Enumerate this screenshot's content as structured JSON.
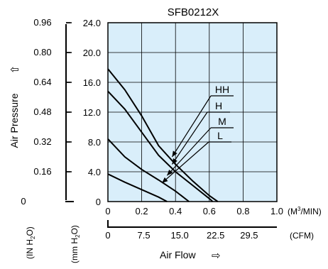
{
  "chart_data": {
    "type": "line",
    "title": "SFB0212X",
    "y_axis_label": "Air Pressure",
    "y_axis_arrow": "⇧",
    "x_axis_label": "Air Flow",
    "x_axis_arrow": "⇨",
    "y_inch_unit": {
      "base": "(IN H",
      "sub": "2",
      "end": "O)"
    },
    "y_mm_unit": {
      "base": "(mm H",
      "sub": "2",
      "end": "O)"
    },
    "x_m3_unit": {
      "base": "(M",
      "sup": "3",
      "end": "/MIN)"
    },
    "x_cfm_unit": "(CFM)",
    "y_inch_ticks": [
      "0.96",
      "0.80",
      "0.64",
      "0.48",
      "0.32",
      "0.16",
      "0"
    ],
    "y_mm_ticks": [
      "24.0",
      "20.0",
      "16.0",
      "12.0",
      "8.0",
      "4.0",
      "0"
    ],
    "x_m3_ticks": [
      "0",
      "0.2",
      "0.4",
      "0.6",
      "0.8",
      "1.0"
    ],
    "x_cfm_ticks": [
      "0",
      "7.5",
      "15.0",
      "22.5",
      "29.5"
    ],
    "xlim": [
      0,
      1.0
    ],
    "ylim_mm": [
      0,
      24.0
    ],
    "grid": true,
    "plot_background": "#d9eefa",
    "line_color": "#000000",
    "series": [
      {
        "name": "HH",
        "x": [
          0,
          0.1,
          0.2,
          0.3,
          0.4,
          0.5,
          0.6,
          0.65
        ],
        "y": [
          17.8,
          15.0,
          11.5,
          7.5,
          5.0,
          2.8,
          0.8,
          0
        ]
      },
      {
        "name": "H",
        "x": [
          0,
          0.1,
          0.2,
          0.3,
          0.4,
          0.5,
          0.6,
          0.62
        ],
        "y": [
          14.8,
          12.4,
          9.3,
          6.2,
          4.0,
          2.2,
          0.4,
          0
        ]
      },
      {
        "name": "M",
        "x": [
          0,
          0.1,
          0.2,
          0.3,
          0.4,
          0.48
        ],
        "y": [
          8.4,
          6.0,
          4.3,
          2.9,
          1.4,
          0
        ]
      },
      {
        "name": "L",
        "x": [
          0,
          0.1,
          0.2,
          0.3,
          0.35
        ],
        "y": [
          3.7,
          2.6,
          1.6,
          0.6,
          0
        ]
      }
    ],
    "annotations": [
      {
        "label": "HH",
        "series": "HH",
        "x": 0.38,
        "y": 6.0
      },
      {
        "label": "H",
        "series": "H",
        "x": 0.38,
        "y": 5.0
      },
      {
        "label": "M",
        "series": "M",
        "x": 0.35,
        "y": 3.5
      },
      {
        "label": "L",
        "series": "L",
        "x": 0.32,
        "y": 2.5
      }
    ]
  }
}
